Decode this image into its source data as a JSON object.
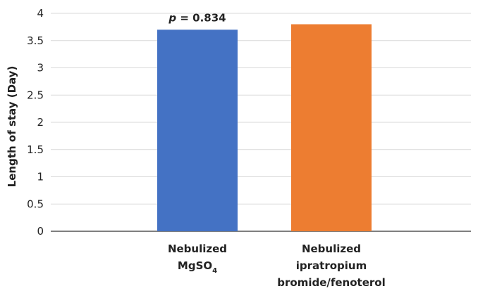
{
  "chart_data": {
    "type": "bar",
    "title": "",
    "xlabel": "",
    "ylabel": "Length of stay (Day)",
    "ylim": [
      0,
      4
    ],
    "yticks": [
      0,
      0.5,
      1,
      1.5,
      2,
      2.5,
      3,
      3.5,
      4
    ],
    "ytick_labels": [
      "0",
      "0.5",
      "1",
      "1.5",
      "2",
      "2.5",
      "3",
      "3.5",
      "4"
    ],
    "grid": true,
    "categories": [
      {
        "lines": [
          {
            "text": "Nebulized",
            "sub": ""
          },
          {
            "text": "MgSO",
            "sub": "4"
          }
        ]
      },
      {
        "lines": [
          {
            "text": "Nebulized",
            "sub": ""
          },
          {
            "text": "ipratropium",
            "sub": ""
          },
          {
            "text": "bromide/fenoterol",
            "sub": ""
          }
        ]
      }
    ],
    "values": [
      3.7,
      3.8
    ],
    "colors": [
      "#4472C4",
      "#ED7D31"
    ],
    "annotation": {
      "symbol": "p",
      "text": " = 0.834",
      "category_index": 0
    }
  }
}
